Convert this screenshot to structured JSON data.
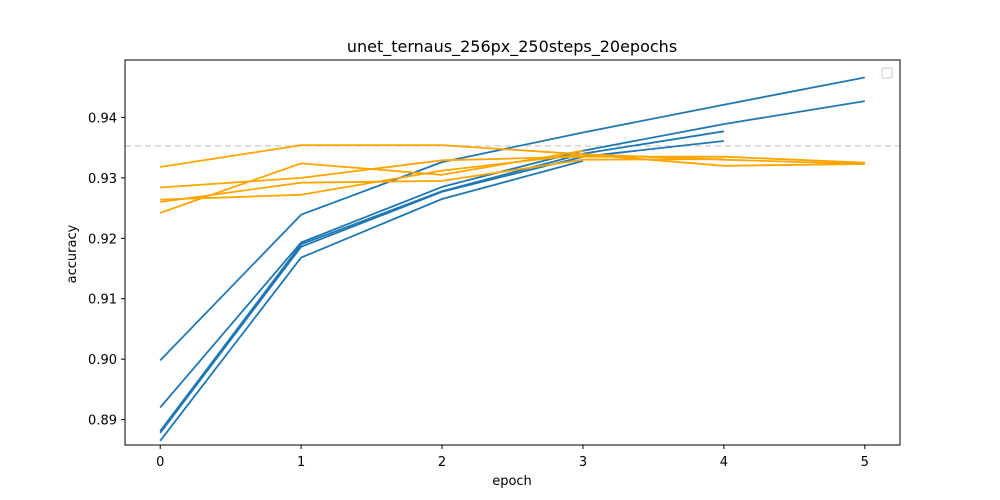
{
  "chart_data": {
    "type": "line",
    "title": "unet_ternaus_256px_250steps_20epochs",
    "xlabel": "epoch",
    "ylabel": "accuracy",
    "xlim": [
      -0.25,
      5.25
    ],
    "ylim": [
      0.8858,
      0.9495
    ],
    "xticks": [
      0,
      1,
      2,
      3,
      4,
      5
    ],
    "xtick_labels": [
      "0",
      "1",
      "2",
      "3",
      "4",
      "5"
    ],
    "yticks": [
      0.89,
      0.9,
      0.91,
      0.92,
      0.93,
      0.94
    ],
    "ytick_labels": [
      "0.89",
      "0.90",
      "0.91",
      "0.92",
      "0.93",
      "0.94"
    ],
    "legend": "top-right",
    "grid": false,
    "reference_line": {
      "y": 0.9353,
      "color": "#d3d3d3",
      "style": "dashed"
    },
    "colors": {
      "blue": "#1f77b4",
      "orange": "#ffa500"
    },
    "series": [
      {
        "color": "blue",
        "x": [
          0,
          1,
          2,
          3,
          4,
          5
        ],
        "y": [
          0.8998,
          0.9239,
          0.9326,
          0.9375,
          0.9421,
          0.9466
        ]
      },
      {
        "color": "blue",
        "x": [
          0,
          1,
          2,
          3,
          4,
          5
        ],
        "y": [
          0.892,
          0.9193,
          0.9285,
          0.9345,
          0.9389,
          0.9427
        ]
      },
      {
        "color": "blue",
        "x": [
          0,
          1,
          2,
          3,
          4
        ],
        "y": [
          0.8881,
          0.919,
          0.9278,
          0.934,
          0.9377
        ]
      },
      {
        "color": "blue",
        "x": [
          0,
          1,
          2,
          3,
          4
        ],
        "y": [
          0.8878,
          0.9186,
          0.9277,
          0.9335,
          0.9361
        ]
      },
      {
        "color": "blue",
        "x": [
          0,
          1,
          2,
          3
        ],
        "y": [
          0.8865,
          0.9168,
          0.9265,
          0.9328
        ]
      },
      {
        "color": "orange",
        "x": [
          0,
          1,
          2,
          3,
          4,
          5
        ],
        "y": [
          0.9318,
          0.9354,
          0.9354,
          0.9339,
          0.932,
          0.9323
        ]
      },
      {
        "color": "orange",
        "x": [
          0,
          1,
          2,
          3,
          4,
          5
        ],
        "y": [
          0.9284,
          0.93,
          0.9329,
          0.9335,
          0.9335,
          0.9325
        ]
      },
      {
        "color": "orange",
        "x": [
          0,
          1,
          2,
          3,
          4,
          5
        ],
        "y": [
          0.9264,
          0.9272,
          0.9312,
          0.9339,
          0.933,
          0.9323
        ]
      },
      {
        "color": "orange",
        "x": [
          0,
          1,
          2,
          3,
          4
        ],
        "y": [
          0.926,
          0.9292,
          0.9295,
          0.933,
          0.9331
        ]
      },
      {
        "color": "orange",
        "x": [
          0,
          1,
          2,
          3
        ],
        "y": [
          0.9242,
          0.9324,
          0.9305,
          0.9345
        ]
      }
    ]
  }
}
